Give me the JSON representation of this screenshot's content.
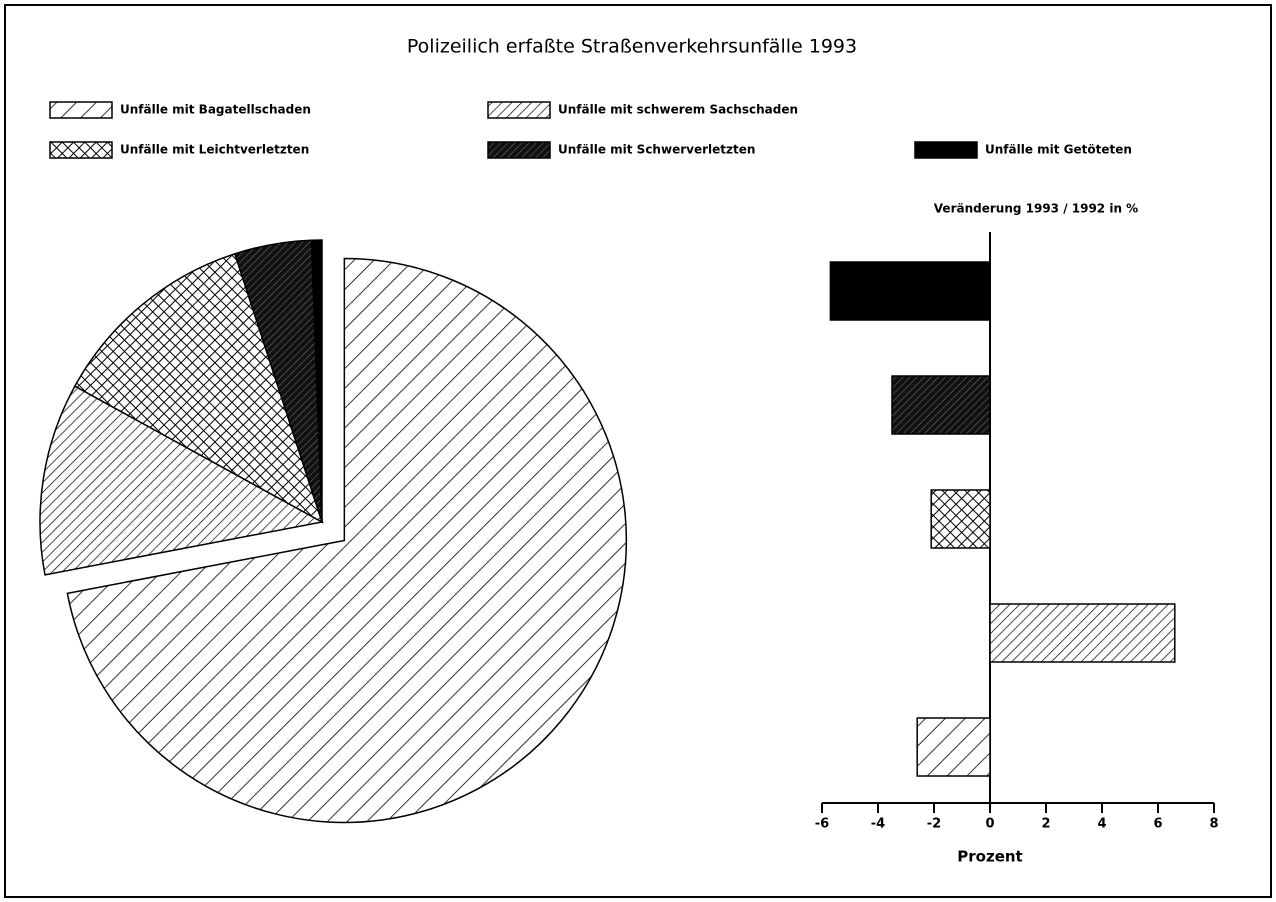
{
  "title": "Polizeilich erfaßte Straßenverkehrsunfälle 1993",
  "chart_data": [
    {
      "type": "pie",
      "categories": [
        "Unfälle mit Bagatellschaden",
        "Unfälle mit schwerem Sachschaden",
        "Unfälle mit Leichtverletzten",
        "Unfälle mit Schwerverletzten",
        "Unfälle mit Getöteten"
      ],
      "values": [
        72,
        11,
        12,
        4.4,
        0.6
      ],
      "explode": [
        true,
        false,
        false,
        false,
        false
      ]
    },
    {
      "type": "barh",
      "title": "Veränderung 1993 / 1992 in %",
      "values": [
        -2.6,
        6.6,
        -2.1,
        -3.5,
        -5.7
      ],
      "xlabel": "Prozent",
      "xlim": [
        -6,
        8
      ],
      "xticks": [
        -6,
        -4,
        -2,
        0,
        2,
        4,
        6,
        8
      ]
    }
  ]
}
